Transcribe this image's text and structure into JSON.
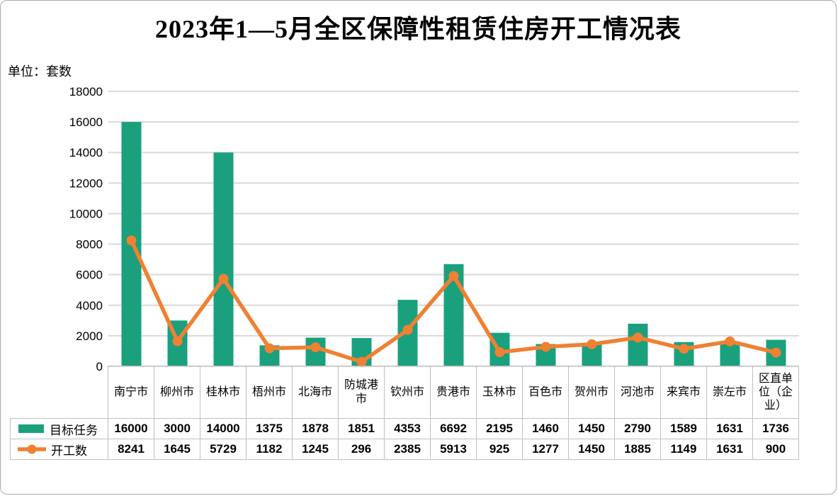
{
  "card": {
    "title": "2023年1—5月全区保障性租赁住房开工情况表",
    "unit_label": "单位：套数"
  },
  "chart_data": {
    "type": "bar",
    "subtype": "bar+line combo with data table",
    "title": "2023年1—5月全区保障性租赁住房开工情况表",
    "unit": "单位：套数",
    "categories": [
      "南宁市",
      "柳州市",
      "桂林市",
      "梧州市",
      "北海市",
      "防城港市",
      "钦州市",
      "贵港市",
      "玉林市",
      "百色市",
      "贺州市",
      "河池市",
      "来宾市",
      "崇左市",
      "区直单位（企业）"
    ],
    "series": [
      {
        "name": "目标任务",
        "type": "bar",
        "color": "#1aa07d",
        "values": [
          16000,
          3000,
          14000,
          1375,
          1878,
          1851,
          4353,
          6692,
          2195,
          1460,
          1450,
          2790,
          1589,
          1631,
          1736
        ]
      },
      {
        "name": "开工数",
        "type": "line",
        "color": "#f08032",
        "values": [
          8241,
          1645,
          5729,
          1182,
          1245,
          296,
          2385,
          5913,
          925,
          1277,
          1450,
          1885,
          1149,
          1631,
          900
        ]
      }
    ],
    "ylim": [
      0,
      18000
    ],
    "ytick_step": 2000,
    "yticks": [
      0,
      2000,
      4000,
      6000,
      8000,
      10000,
      12000,
      14000,
      16000,
      18000
    ],
    "grid": "horizontal",
    "gridline_color": "#d9d9d9",
    "legend_position": "data-table-left"
  }
}
